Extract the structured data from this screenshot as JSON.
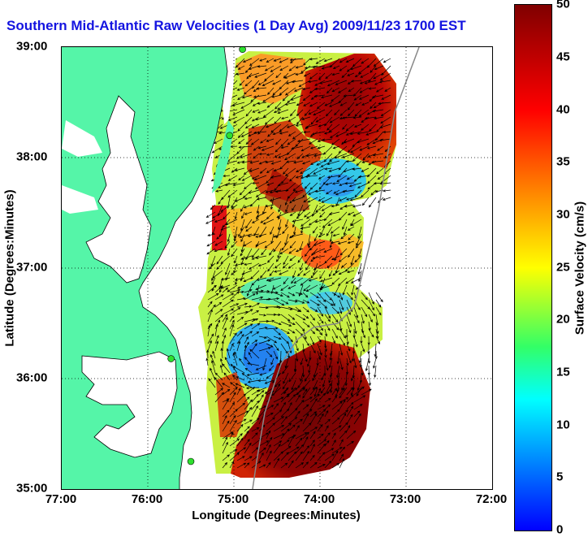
{
  "title": "Southern Mid-Atlantic Raw Velocities (1 Day Avg) 2009/11/23 1700 EST",
  "xlabel": "Longitude (Degrees:Minutes)",
  "ylabel": "Latitude (Degrees:Minutes)",
  "colorbar_label": "Surface Velocity (cm/s)",
  "xticks": [
    "77:00",
    "76:00",
    "75:00",
    "74:00",
    "73:00",
    "72:00"
  ],
  "yticks": [
    "39:00",
    "38:00",
    "37:00",
    "36:00",
    "35:00"
  ],
  "cbticks": [
    "50",
    "45",
    "40",
    "35",
    "30",
    "25",
    "20",
    "15",
    "10",
    "5",
    "0"
  ],
  "colors": {
    "land": "#55f5a8",
    "title": "#1414e0",
    "station": "#2ee02e"
  },
  "map": {
    "lon_range": [
      -77,
      -72
    ],
    "lat_range": [
      35,
      39
    ],
    "velocity_range_cm_s": [
      0,
      50
    ],
    "grid": "dotted",
    "vector_color": "black",
    "stations": [
      {
        "lon": -74.9,
        "lat": 38.98
      },
      {
        "lon": -75.05,
        "lat": 38.2
      },
      {
        "lon": -75.73,
        "lat": 36.18
      },
      {
        "lon": -75.5,
        "lat": 35.25
      }
    ]
  }
}
